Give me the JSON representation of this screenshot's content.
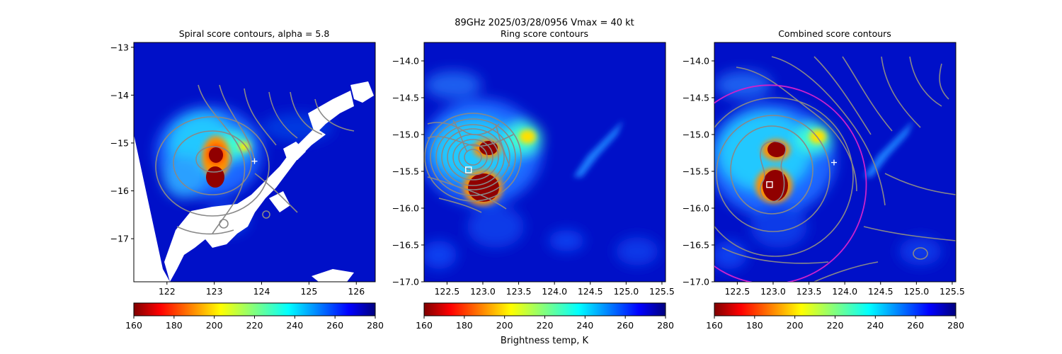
{
  "suptitle_line1": "89GHz  2025/03/28/0956    Vmax = 40 kt",
  "colorbar_label": "Brightness temp, K",
  "chart_data": [
    {
      "type": "heatmap",
      "title": "Spiral score contours, alpha =  5.8",
      "xlim": [
        121.3,
        126.4
      ],
      "ylim": [
        -17.9,
        -12.9
      ],
      "xticks": [
        122,
        123,
        124,
        125,
        126
      ],
      "yticks": [
        -17,
        -16,
        -15,
        -14,
        -13
      ],
      "colorbar": {
        "min": 160,
        "max": 280,
        "ticks": [
          160,
          180,
          200,
          220,
          240,
          260,
          280
        ],
        "colormap": "jet_r"
      },
      "markers": [
        {
          "kind": "plus",
          "x": 123.85,
          "y": -15.38,
          "color": "#ffffff"
        }
      ],
      "contour_color": "#888888"
    },
    {
      "type": "heatmap",
      "title": "Ring score contours",
      "xlim": [
        122.18,
        125.55
      ],
      "ylim": [
        -17.0,
        -13.75
      ],
      "xticks": [
        122.5,
        123.0,
        123.5,
        124.0,
        124.5,
        125.0,
        125.5
      ],
      "yticks": [
        -17.0,
        -16.5,
        -16.0,
        -15.5,
        -15.0,
        -14.5,
        -14.0
      ],
      "colorbar": {
        "min": 160,
        "max": 280,
        "ticks": [
          160,
          180,
          200,
          220,
          240,
          260,
          280
        ],
        "colormap": "jet_r"
      },
      "markers": [
        {
          "kind": "square",
          "x": 122.8,
          "y": -15.48,
          "color": "#ffffff"
        }
      ],
      "contour_color": "#888888"
    },
    {
      "type": "heatmap",
      "title": "Combined score contours",
      "xlim": [
        122.18,
        125.55
      ],
      "ylim": [
        -17.0,
        -13.75
      ],
      "xticks": [
        122.5,
        123.0,
        123.5,
        124.0,
        124.5,
        125.0,
        125.5
      ],
      "yticks": [
        -17.0,
        -16.5,
        -16.0,
        -15.5,
        -15.0,
        -14.5,
        -14.0
      ],
      "colorbar": {
        "min": 160,
        "max": 280,
        "ticks": [
          160,
          180,
          200,
          220,
          240,
          260,
          280
        ],
        "colormap": "jet_r"
      },
      "markers": [
        {
          "kind": "plus",
          "x": 123.85,
          "y": -15.38,
          "color": "#ffffff"
        },
        {
          "kind": "square",
          "x": 122.95,
          "y": -15.68,
          "color": "#ffffff"
        }
      ],
      "circle": {
        "cx": 122.95,
        "cy": -15.68,
        "r": 1.35,
        "color": "#cc22cc"
      },
      "contour_color": "#888888"
    }
  ]
}
